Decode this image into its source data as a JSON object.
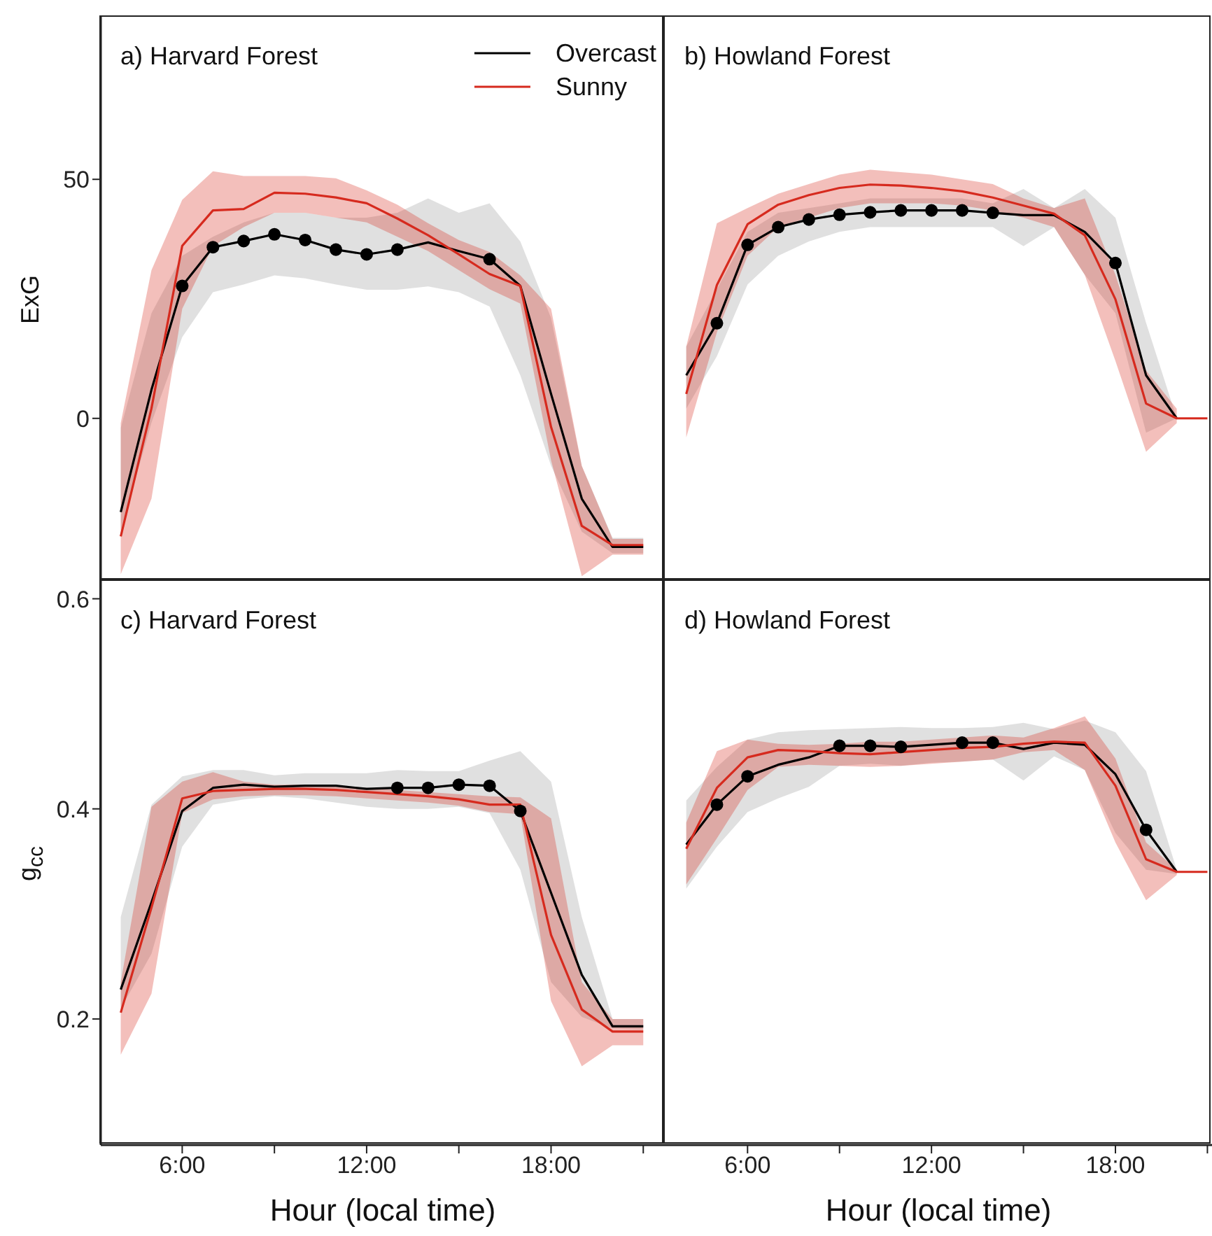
{
  "chart_data": [
    {
      "type": "line",
      "title": "a) Harvard Forest",
      "ylabel": "ExG",
      "x": [
        4,
        5,
        6,
        7,
        8,
        9,
        10,
        11,
        12,
        13,
        14,
        15,
        16,
        17,
        18,
        19,
        20,
        21
      ],
      "xlim": [
        3.35,
        21.7
      ],
      "ylim": [
        -34,
        84
      ],
      "yticks": [
        0,
        50
      ],
      "tick_labels": "y",
      "legend": "top right",
      "grid": false,
      "series": [
        {
          "name": "Overcast",
          "color": "#000000",
          "values": [
            -19.6,
            6,
            27.7,
            35.8,
            37.1,
            38.5,
            37.3,
            35.3,
            34.3,
            35.3,
            36.8,
            35,
            33.3,
            27.7,
            5.1,
            -16.8,
            -26.9,
            -26.9
          ],
          "lower": [
            -23.5,
            -0.9,
            17,
            26.4,
            28,
            29.9,
            29.3,
            28,
            26.9,
            26.9,
            27.6,
            26.4,
            23.4,
            9,
            -9.9,
            -23.7,
            -28.2,
            -28.2
          ],
          "upper": [
            -2,
            22,
            34,
            38,
            41,
            43,
            43,
            42,
            42,
            43,
            46,
            43,
            45,
            37,
            21,
            -10,
            -25,
            -25
          ]
        },
        {
          "name": "Sunny",
          "color": "#d62a1e",
          "values": [
            -24.7,
            2.1,
            36.1,
            43.5,
            43.8,
            47.2,
            47,
            46.2,
            45,
            41.8,
            38.3,
            34.3,
            30.2,
            27.7,
            -1.8,
            -22.5,
            -26.5,
            -26.5
          ],
          "lower": [
            -32.6,
            -16.8,
            22.9,
            36,
            40,
            43,
            43,
            42,
            41,
            38,
            35,
            31,
            27,
            24,
            -8.8,
            -33,
            -28.5,
            -28.5
          ],
          "upper": [
            -1,
            31,
            45.7,
            51.7,
            50.7,
            50.7,
            50.7,
            50.2,
            47.7,
            44.7,
            40.8,
            37.3,
            34.8,
            29.9,
            22.9,
            -9.9,
            -25.2,
            -25.2
          ]
        },
        {
          "type": "scatter",
          "color": "#000000",
          "marker": "circle",
          "x": [
            6,
            7,
            8,
            9,
            10,
            11,
            12,
            13,
            16
          ],
          "values": [
            27.7,
            35.8,
            37.1,
            38.5,
            37.3,
            35.3,
            34.3,
            35.3,
            33.3
          ]
        }
      ]
    },
    {
      "type": "line",
      "title": "b) Howland Forest",
      "x": [
        4,
        5,
        6,
        7,
        8,
        9,
        10,
        11,
        12,
        13,
        14,
        15,
        16,
        17,
        18,
        19,
        20,
        21
      ],
      "xlim": [
        3.3,
        21.15
      ],
      "ylim": [
        -34,
        84
      ],
      "tick_labels": false,
      "grid": false,
      "series": [
        {
          "color": "#000000",
          "values": [
            9,
            19.9,
            36.3,
            40,
            41.6,
            42.6,
            43.1,
            43.5,
            43.5,
            43.5,
            43,
            42.5,
            42.5,
            39,
            32.5,
            9,
            0,
            null
          ],
          "lower": [
            2,
            13,
            28,
            34,
            37,
            39,
            40,
            40,
            40,
            40,
            40,
            36,
            40,
            30,
            22,
            -3,
            0,
            null
          ],
          "upper": [
            15,
            27,
            39,
            43,
            44,
            45,
            46,
            46,
            46,
            46,
            45,
            48,
            44,
            48,
            42,
            20,
            0,
            null
          ]
        },
        {
          "color": "#d62a1e",
          "values": [
            5.1,
            27.9,
            40.6,
            44.7,
            46.7,
            48.2,
            48.9,
            48.7,
            48.2,
            47.5,
            46.2,
            44.5,
            42.8,
            38.3,
            24.9,
            3.1,
            0,
            0
          ],
          "lower": [
            -4,
            18,
            34,
            40,
            42,
            44,
            45,
            45,
            45,
            44.5,
            43.5,
            42,
            40,
            30,
            12,
            -7,
            -1,
            null
          ],
          "upper": [
            15,
            40.8,
            44,
            47,
            49,
            51,
            52,
            51.5,
            51,
            50,
            49,
            46,
            44,
            46,
            30,
            10,
            2,
            null
          ]
        },
        {
          "type": "scatter",
          "color": "#000000",
          "marker": "circle",
          "x": [
            5,
            6,
            7,
            8,
            9,
            10,
            11,
            12,
            13,
            14,
            18
          ],
          "values": [
            19.9,
            36.3,
            40,
            41.6,
            42.6,
            43.1,
            43.5,
            43.5,
            43.5,
            43,
            32.5
          ]
        }
      ]
    },
    {
      "type": "line",
      "title": "c) Harvard Forest",
      "ylabel": "g$_{cc}$",
      "xlabel": "Hour (local time)",
      "x": [
        4,
        5,
        6,
        7,
        8,
        9,
        10,
        11,
        12,
        13,
        14,
        15,
        16,
        17,
        18,
        19,
        20,
        21
      ],
      "xlim": [
        3.35,
        21.7
      ],
      "ylim": [
        0.08,
        0.617
      ],
      "yticks": [
        0.2,
        0.4,
        0.6
      ],
      "xticks": [
        {
          "value": 6,
          "label": "6:00"
        },
        {
          "value": 9,
          "label": null
        },
        {
          "value": 12,
          "label": "12:00"
        },
        {
          "value": 15,
          "label": null
        },
        {
          "value": 18,
          "label": "18:00"
        },
        {
          "value": 21,
          "label": null
        }
      ],
      "grid": false,
      "series": [
        {
          "color": "#000000",
          "values": [
            0.228,
            0.311,
            0.398,
            0.42,
            0.423,
            0.421,
            0.422,
            0.422,
            0.419,
            0.42,
            0.42,
            0.423,
            0.422,
            0.398,
            0.32,
            0.242,
            0.193,
            0.193
          ],
          "lower": [
            0.21,
            0.262,
            0.364,
            0.404,
            0.409,
            0.412,
            0.41,
            0.406,
            0.402,
            0.4,
            0.4,
            0.402,
            0.396,
            0.342,
            0.235,
            0.202,
            0.191,
            0.19
          ],
          "upper": [
            0.297,
            0.404,
            0.431,
            0.437,
            0.437,
            0.432,
            0.434,
            0.434,
            0.434,
            0.437,
            0.436,
            0.436,
            0.446,
            0.455,
            0.426,
            0.297,
            0.2,
            0.2
          ]
        },
        {
          "color": "#d62a1e",
          "values": [
            0.206,
            0.306,
            0.41,
            0.417,
            0.418,
            0.419,
            0.419,
            0.418,
            0.416,
            0.414,
            0.412,
            0.409,
            0.404,
            0.404,
            0.28,
            0.209,
            0.188,
            0.188
          ],
          "lower": [
            0.166,
            0.224,
            0.396,
            0.409,
            0.412,
            0.413,
            0.413,
            0.412,
            0.41,
            0.408,
            0.406,
            0.403,
            0.397,
            0.395,
            0.217,
            0.155,
            0.175,
            0.175
          ],
          "upper": [
            0.235,
            0.402,
            0.426,
            0.435,
            0.426,
            0.423,
            0.423,
            0.421,
            0.42,
            0.418,
            0.416,
            0.414,
            0.412,
            0.411,
            0.391,
            0.235,
            0.2,
            0.2
          ]
        },
        {
          "type": "scatter",
          "color": "#000000",
          "marker": "circle",
          "x": [
            13,
            14,
            15,
            16,
            17
          ],
          "values": [
            0.42,
            0.42,
            0.423,
            0.422,
            0.398
          ]
        }
      ]
    },
    {
      "type": "line",
      "title": "d) Howland Forest",
      "xlabel": "Hour (local time)",
      "x": [
        4,
        5,
        6,
        7,
        8,
        9,
        10,
        11,
        12,
        13,
        14,
        15,
        16,
        17,
        18,
        19,
        20,
        21
      ],
      "xlim": [
        3.3,
        21.15
      ],
      "ylim": [
        0.08,
        0.617
      ],
      "xticks": [
        {
          "value": 6,
          "label": "6:00"
        },
        {
          "value": 9,
          "label": null
        },
        {
          "value": 12,
          "label": "12:00"
        },
        {
          "value": 15,
          "label": null
        },
        {
          "value": 18,
          "label": "18:00"
        },
        {
          "value": 21,
          "label": null
        }
      ],
      "tick_labels": "x",
      "grid": false,
      "series": [
        {
          "color": "#000000",
          "values": [
            0.366,
            0.404,
            0.431,
            0.442,
            0.449,
            0.46,
            0.46,
            0.459,
            0.461,
            0.463,
            0.463,
            0.457,
            0.463,
            0.461,
            0.433,
            0.38,
            0.34,
            null
          ],
          "lower": [
            0.324,
            0.364,
            0.397,
            0.41,
            0.421,
            0.441,
            0.443,
            0.441,
            0.444,
            0.445,
            0.447,
            0.427,
            0.45,
            0.437,
            0.377,
            0.342,
            0.338,
            null
          ],
          "upper": [
            0.408,
            0.44,
            0.466,
            0.473,
            0.475,
            0.476,
            0.477,
            0.478,
            0.477,
            0.477,
            0.478,
            0.482,
            0.476,
            0.484,
            0.473,
            0.436,
            0.342,
            null
          ]
        },
        {
          "color": "#d62a1e",
          "values": [
            0.362,
            0.42,
            0.449,
            0.456,
            0.455,
            0.453,
            0.452,
            0.454,
            0.456,
            0.458,
            0.459,
            0.462,
            0.464,
            0.463,
            0.422,
            0.352,
            0.34,
            0.34
          ],
          "lower": [
            0.328,
            0.372,
            0.418,
            0.44,
            0.442,
            0.441,
            0.44,
            0.441,
            0.443,
            0.445,
            0.447,
            0.454,
            0.456,
            0.437,
            0.368,
            0.313,
            0.337,
            null
          ],
          "upper": [
            0.387,
            0.455,
            0.466,
            0.462,
            0.461,
            0.462,
            0.464,
            0.464,
            0.466,
            0.468,
            0.47,
            0.468,
            0.477,
            0.488,
            0.448,
            0.368,
            0.342,
            null
          ]
        },
        {
          "type": "scatter",
          "color": "#000000",
          "marker": "circle",
          "x": [
            5,
            6,
            9,
            10,
            11,
            13,
            14,
            19
          ],
          "values": [
            0.404,
            0.431,
            0.46,
            0.46,
            0.459,
            0.463,
            0.463,
            0.38
          ]
        }
      ]
    }
  ]
}
